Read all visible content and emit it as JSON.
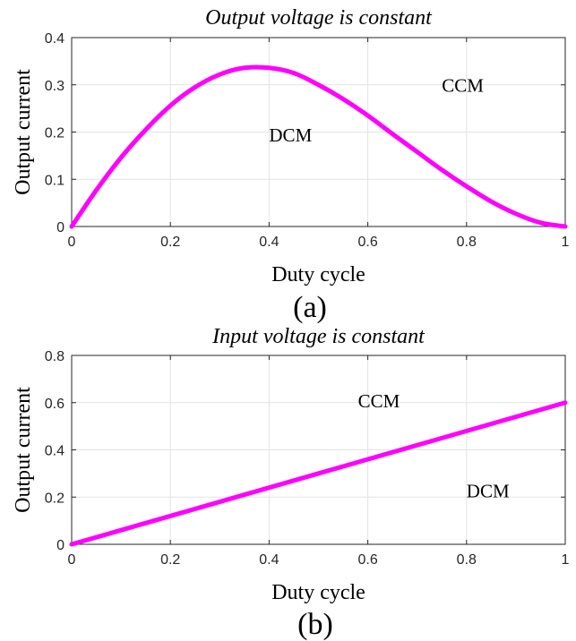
{
  "chart_data": [
    {
      "type": "line",
      "title": "Output voltage is constant",
      "xlabel": "Duty cycle",
      "ylabel": "Output current",
      "xlim": [
        0,
        1
      ],
      "ylim": [
        0,
        0.4
      ],
      "xticks": [
        0,
        0.2,
        0.4,
        0.6,
        0.8,
        1
      ],
      "yticks": [
        0,
        0.1,
        0.2,
        0.3,
        0.4
      ],
      "xtick_labels": [
        "0",
        "0.2",
        "0.4",
        "0.6",
        "0.8",
        "1"
      ],
      "ytick_labels": [
        "0",
        "0.1",
        "0.2",
        "0.3",
        "0.4"
      ],
      "grid": true,
      "series": [
        {
          "color": "#ff00ff",
          "x": [
            0,
            0.05,
            0.1,
            0.15,
            0.2,
            0.25,
            0.3,
            0.35,
            0.4,
            0.45,
            0.5,
            0.55,
            0.6,
            0.65,
            0.7,
            0.75,
            0.8,
            0.85,
            0.9,
            0.95,
            1
          ],
          "y": [
            0,
            0.077,
            0.146,
            0.205,
            0.256,
            0.295,
            0.322,
            0.336,
            0.336,
            0.325,
            0.3,
            0.27,
            0.235,
            0.196,
            0.158,
            0.12,
            0.085,
            0.053,
            0.027,
            0.008,
            0
          ]
        }
      ],
      "annotations": [
        {
          "text": "CCM",
          "x": 0.75,
          "y": 0.285
        },
        {
          "text": "DCM",
          "x": 0.4,
          "y": 0.18
        }
      ]
    },
    {
      "type": "line",
      "title": "Input voltage is constant",
      "xlabel": "Duty cycle",
      "ylabel": "Output current",
      "xlim": [
        0,
        1
      ],
      "ylim": [
        0,
        0.8
      ],
      "xticks": [
        0,
        0.2,
        0.4,
        0.6,
        0.8,
        1
      ],
      "yticks": [
        0,
        0.2,
        0.4,
        0.6,
        0.8
      ],
      "xtick_labels": [
        "0",
        "0.2",
        "0.4",
        "0.6",
        "0.8",
        "1"
      ],
      "ytick_labels": [
        "0",
        "0.2",
        "0.4",
        "0.6",
        "0.8"
      ],
      "grid": true,
      "series": [
        {
          "color": "#ff00ff",
          "x": [
            0,
            1
          ],
          "y": [
            0,
            0.6
          ]
        }
      ],
      "annotations": [
        {
          "text": "CCM",
          "x": 0.58,
          "y": 0.58
        },
        {
          "text": "DCM",
          "x": 0.8,
          "y": 0.2
        }
      ]
    }
  ],
  "captions": [
    "(a)",
    "(b)"
  ]
}
